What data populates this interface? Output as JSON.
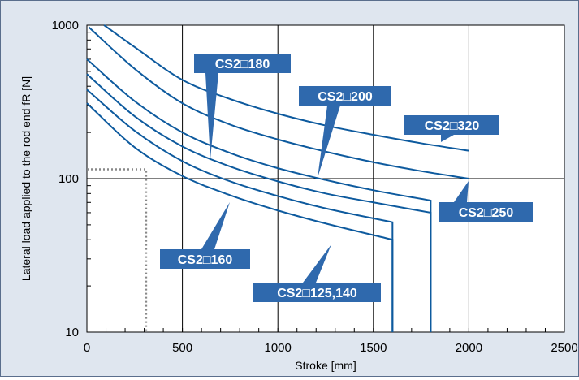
{
  "chart_data": {
    "type": "line",
    "xlabel": "Stroke [mm]",
    "ylabel": "Lateral load applied to the rod end fR [N]",
    "xlim": [
      0,
      2500
    ],
    "ylim": [
      10,
      1000
    ],
    "yscale": "log",
    "grid": true,
    "xticks": [
      "0",
      "500",
      "1000",
      "1500",
      "2000",
      "2500"
    ],
    "yticks": [
      "10",
      "100",
      "1000"
    ],
    "colors": {
      "curve": "#0d5a9e",
      "label_bg": "#2f69ad",
      "label_text": "#ffffff",
      "plot_bg": "#ffffff",
      "panel_bg": "#dfe6ef",
      "reference": "#888888"
    },
    "reference_point": {
      "x": 310,
      "y": 115
    },
    "series": [
      {
        "name": "CS2□320",
        "x": [
          90,
          250,
          500,
          750,
          1000,
          1250,
          1500,
          1750,
          2000
        ],
        "y": [
          1000,
          720,
          440,
          330,
          265,
          222,
          193,
          170,
          152
        ]
      },
      {
        "name": "CS2□250",
        "x": [
          10,
          250,
          500,
          750,
          1000,
          1250,
          1500,
          1750,
          2000
        ],
        "y": [
          970,
          520,
          310,
          225,
          180,
          150,
          128,
          112,
          100
        ]
      },
      {
        "name": "CS2□200",
        "x": [
          0,
          250,
          500,
          750,
          1000,
          1250,
          1500,
          1800,
          1800
        ],
        "y": [
          600,
          320,
          200,
          147,
          117,
          98,
          84,
          72,
          10
        ]
      },
      {
        "name": "CS2□180",
        "x": [
          0,
          250,
          500,
          750,
          1000,
          1250,
          1500,
          1800,
          1800
        ],
        "y": [
          480,
          255,
          162,
          120,
          96,
          80,
          70,
          60,
          10
        ]
      },
      {
        "name": "CS2□160",
        "x": [
          0,
          250,
          500,
          750,
          1000,
          1250,
          1600,
          1600
        ],
        "y": [
          380,
          205,
          130,
          96,
          77,
          64,
          52,
          10
        ]
      },
      {
        "name": "CS2□125,140",
        "x": [
          0,
          250,
          500,
          750,
          1000,
          1250,
          1600,
          1600
        ],
        "y": [
          310,
          160,
          104,
          78,
          62,
          51,
          40,
          10
        ]
      }
    ],
    "labels": [
      {
        "text": "CS2□180",
        "series": "CS2□180"
      },
      {
        "text": "CS2□200",
        "series": "CS2□200"
      },
      {
        "text": "CS2□320",
        "series": "CS2□320"
      },
      {
        "text": "CS2□250",
        "series": "CS2□250"
      },
      {
        "text": "CS2□160",
        "series": "CS2□160"
      },
      {
        "text": "CS2□125,140",
        "series": "CS2□125,140"
      }
    ]
  }
}
